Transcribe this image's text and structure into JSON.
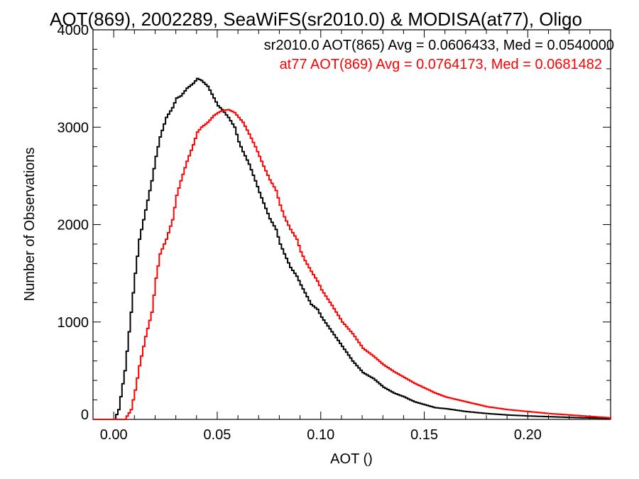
{
  "chart_data": {
    "type": "line",
    "title": "AOT(869), 2002289, SeaWiFS(sr2010.0) & MODISA(at77), Oligo",
    "xlabel": "AOT ()",
    "ylabel": "Number of Observations",
    "xlim": [
      -0.01,
      0.24
    ],
    "ylim": [
      0,
      4000
    ],
    "xticks": [
      "0.00",
      "0.05",
      "0.10",
      "0.15",
      "0.20"
    ],
    "yticks": [
      "0",
      "1000",
      "2000",
      "3000",
      "4000"
    ],
    "grid": false,
    "legend_position": "top-right",
    "series": [
      {
        "name": "sr2010.0 AOT(865) Avg = 0.0606433, Med = 0.0540000",
        "color": "#000000",
        "x": [
          -0.01,
          0.0,
          0.002,
          0.005,
          0.008,
          0.01,
          0.012,
          0.015,
          0.018,
          0.02,
          0.022,
          0.025,
          0.028,
          0.03,
          0.032,
          0.035,
          0.038,
          0.04,
          0.042,
          0.045,
          0.048,
          0.05,
          0.052,
          0.055,
          0.058,
          0.06,
          0.062,
          0.065,
          0.068,
          0.07,
          0.072,
          0.075,
          0.078,
          0.08,
          0.082,
          0.085,
          0.088,
          0.09,
          0.092,
          0.095,
          0.098,
          0.1,
          0.105,
          0.11,
          0.115,
          0.12,
          0.125,
          0.13,
          0.135,
          0.14,
          0.145,
          0.15,
          0.155,
          0.16,
          0.17,
          0.18,
          0.19,
          0.2,
          0.21,
          0.22,
          0.23,
          0.24
        ],
        "y": [
          0,
          0,
          100,
          500,
          1100,
          1500,
          1850,
          2150,
          2450,
          2700,
          2900,
          3100,
          3200,
          3300,
          3320,
          3400,
          3450,
          3500,
          3480,
          3420,
          3300,
          3220,
          3180,
          3100,
          3000,
          2850,
          2750,
          2620,
          2450,
          2330,
          2220,
          2060,
          1950,
          1800,
          1700,
          1560,
          1470,
          1380,
          1300,
          1180,
          1130,
          1050,
          900,
          750,
          600,
          480,
          420,
          330,
          270,
          230,
          180,
          150,
          120,
          110,
          80,
          60,
          45,
          35,
          28,
          20,
          15,
          10
        ]
      },
      {
        "name": "at77 AOT(869) Avg = 0.0764173, Med = 0.0681482",
        "color": "#ff0000",
        "x": [
          -0.01,
          0.005,
          0.008,
          0.01,
          0.012,
          0.015,
          0.018,
          0.02,
          0.022,
          0.025,
          0.028,
          0.03,
          0.032,
          0.035,
          0.038,
          0.04,
          0.042,
          0.045,
          0.048,
          0.05,
          0.052,
          0.055,
          0.058,
          0.06,
          0.062,
          0.065,
          0.068,
          0.07,
          0.072,
          0.075,
          0.078,
          0.08,
          0.082,
          0.085,
          0.088,
          0.09,
          0.092,
          0.095,
          0.098,
          0.1,
          0.105,
          0.11,
          0.115,
          0.12,
          0.125,
          0.13,
          0.135,
          0.14,
          0.145,
          0.15,
          0.155,
          0.16,
          0.17,
          0.18,
          0.19,
          0.2,
          0.21,
          0.22,
          0.23,
          0.24
        ],
        "y": [
          0,
          0,
          100,
          300,
          550,
          850,
          1100,
          1450,
          1700,
          1850,
          2050,
          2300,
          2450,
          2650,
          2820,
          2950,
          3000,
          3050,
          3120,
          3150,
          3170,
          3180,
          3150,
          3100,
          3050,
          2930,
          2800,
          2700,
          2600,
          2460,
          2350,
          2200,
          2080,
          1950,
          1850,
          1720,
          1630,
          1520,
          1420,
          1330,
          1170,
          1000,
          880,
          730,
          650,
          560,
          490,
          430,
          370,
          320,
          270,
          230,
          180,
          130,
          100,
          80,
          60,
          45,
          30,
          15
        ]
      }
    ]
  }
}
